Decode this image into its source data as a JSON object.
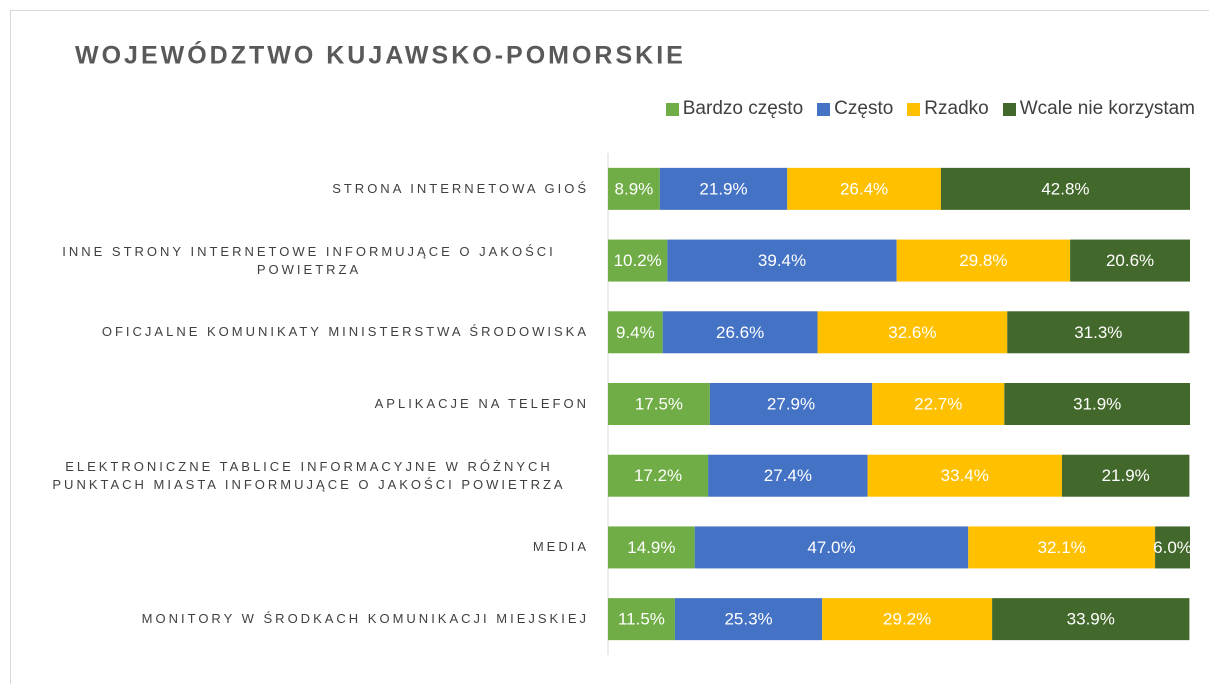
{
  "chart_data": {
    "type": "stacked-bar-horizontal",
    "title": "WOJEWÓDZTWO KUJAWSKO-POMORSKIE",
    "categories": [
      "STRONA INTERNETOWA GIOŚ",
      "INNE STRONY INTERNETOWE INFORMUJĄCE O JAKOŚCI POWIETRZA",
      "OFICJALNE KOMUNIKATY MINISTERSTWA ŚRODOWISKA",
      "APLIKACJE NA TELEFON",
      "ELEKTRONICZNE TABLICE INFORMACYJNE W RÓŻNYCH PUNKTACH MIASTA INFORMUJĄCE O JAKOŚCI POWIETRZA",
      "MEDIA",
      "MONITORY W ŚRODKACH KOMUNIKACJI MIEJSKIEJ"
    ],
    "series": [
      {
        "name": "Bardzo często",
        "color": "#70ad47",
        "values": [
          8.9,
          10.2,
          9.4,
          17.5,
          17.2,
          14.9,
          11.5
        ],
        "value_labels": [
          "8.9%",
          "10.2%",
          "9.4%",
          "17.5%",
          "17.2%",
          "14.9%",
          "11.5%"
        ]
      },
      {
        "name": "Często",
        "color": "#4472c4",
        "values": [
          21.9,
          39.4,
          26.6,
          27.9,
          27.4,
          47.0,
          25.3
        ],
        "value_labels": [
          "21.9%",
          "39.4%",
          "26.6%",
          "27.9%",
          "27.4%",
          "47.0%",
          "25.3%"
        ]
      },
      {
        "name": "Rzadko",
        "color": "#ffc000",
        "values": [
          26.4,
          29.8,
          32.6,
          22.7,
          33.4,
          32.1,
          29.2
        ],
        "value_labels": [
          "26.4%",
          "29.8%",
          "32.6%",
          "22.7%",
          "33.4%",
          "32.1%",
          "29.2%"
        ]
      },
      {
        "name": "Wcale nie korzystam",
        "color": "#43682b",
        "values": [
          42.8,
          20.6,
          31.3,
          31.9,
          21.9,
          6.0,
          33.9
        ],
        "value_labels": [
          "42.8%",
          "20.6%",
          "31.3%",
          "31.9%",
          "21.9%",
          "6.0%",
          "33.9%"
        ]
      }
    ],
    "xlim": [
      0,
      100
    ],
    "legend": "top-right"
  }
}
